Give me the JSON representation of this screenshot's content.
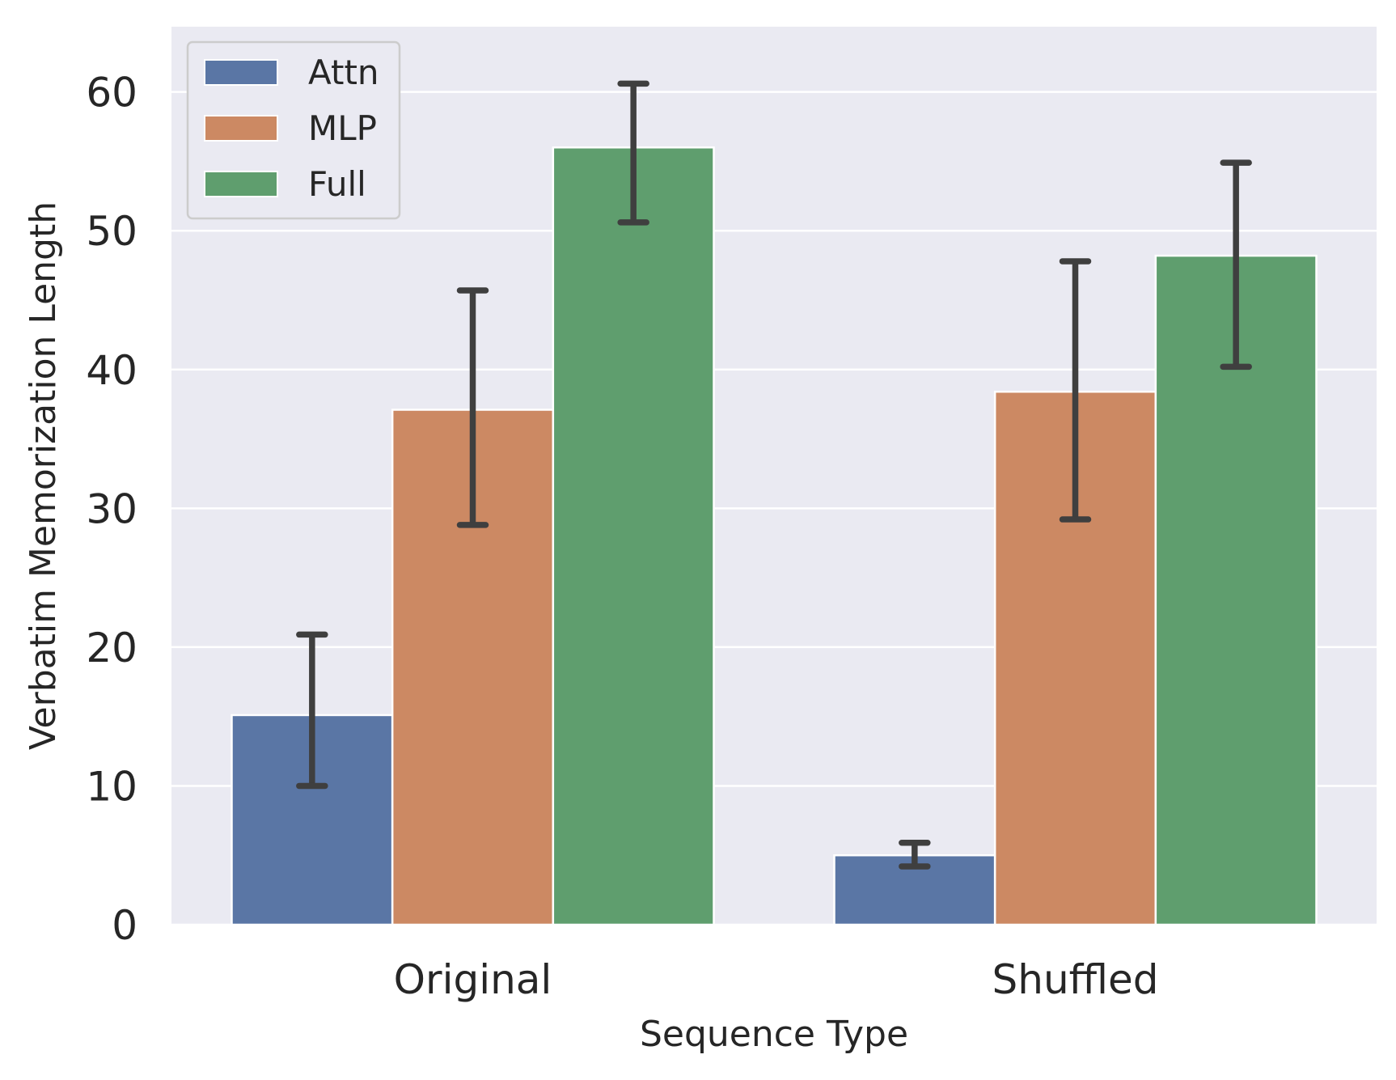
{
  "chart_data": {
    "type": "bar",
    "xlabel": "Sequence Type",
    "ylabel": "Verbatim Memorization Length",
    "categories": [
      "Original",
      "Shuffled"
    ],
    "series": [
      {
        "name": "Attn",
        "color": "#5a76a5",
        "values": [
          15.1,
          5.0
        ],
        "err_low": [
          10.0,
          4.2
        ],
        "err_high": [
          20.9,
          5.9
        ]
      },
      {
        "name": "MLP",
        "color": "#cc8963",
        "values": [
          37.1,
          38.4
        ],
        "err_low": [
          28.8,
          29.2
        ],
        "err_high": [
          45.7,
          47.8
        ]
      },
      {
        "name": "Full",
        "color": "#5f9e6e",
        "values": [
          56.0,
          48.2
        ],
        "err_low": [
          50.6,
          40.2
        ],
        "err_high": [
          60.6,
          54.9
        ]
      }
    ],
    "ylim": [
      0,
      64.7
    ],
    "yticks": [
      0,
      10,
      20,
      30,
      40,
      50,
      60
    ],
    "grid": true,
    "legend_position": "top-left",
    "style": {
      "background": "#eaeaf2",
      "grid_color": "#ffffff",
      "errorbar_color": "#3f3f3f"
    }
  }
}
